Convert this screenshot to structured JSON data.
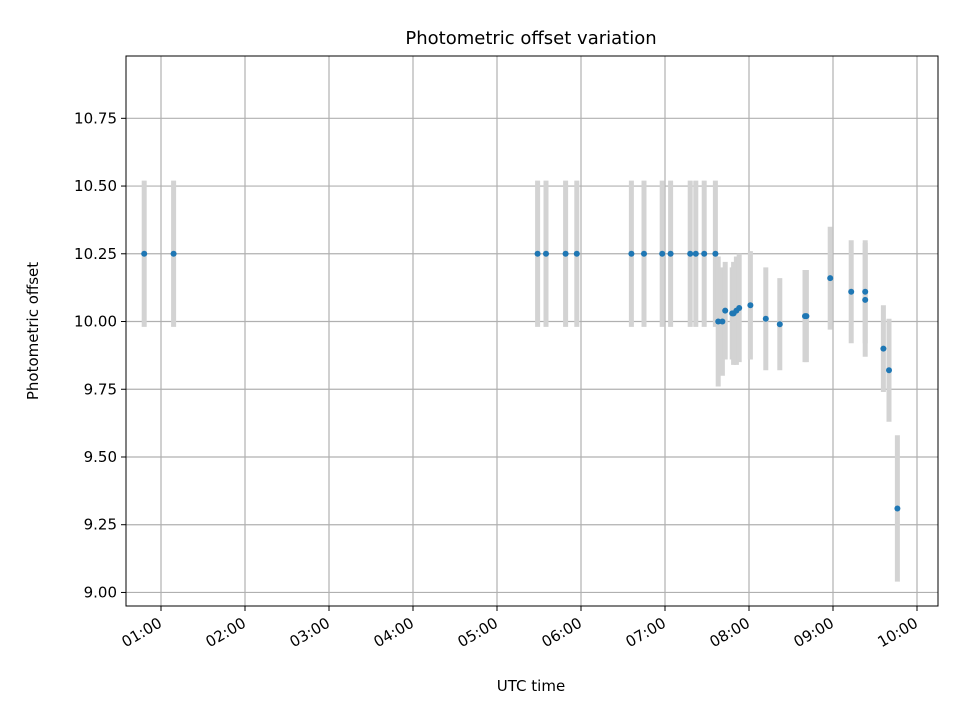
{
  "chart_data": {
    "type": "scatter",
    "title": "Photometric offset variation",
    "xlabel": "UTC time",
    "ylabel": "Photometric offset",
    "x_unit": "time of day (HH:MM, UTC)",
    "xlim": [
      "00:35",
      "10:15"
    ],
    "ylim": [
      8.95,
      10.98
    ],
    "x_ticks": [
      "01:00",
      "02:00",
      "03:00",
      "04:00",
      "05:00",
      "06:00",
      "07:00",
      "08:00",
      "09:00",
      "10:00"
    ],
    "y_ticks": [
      "9.00",
      "9.25",
      "9.50",
      "9.75",
      "10.00",
      "10.25",
      "10.50",
      "10.75"
    ],
    "grid": true,
    "colors": {
      "points": "#1f77b4",
      "errorbars": "#d3d3d3",
      "grid": "#b0b0b0"
    },
    "series": [
      {
        "x": [
          "00:48",
          "01:09",
          "05:29",
          "05:35",
          "05:49",
          "05:57",
          "06:36",
          "06:45",
          "06:58",
          "07:04",
          "07:18",
          "07:22",
          "07:28",
          "07:36",
          "07:38",
          "07:41",
          "07:43",
          "07:48",
          "07:49",
          "07:51",
          "07:53",
          "08:01",
          "08:12",
          "08:22",
          "08:40",
          "08:41",
          "08:58",
          "09:13",
          "09:23",
          "09:23",
          "09:36",
          "09:40",
          "09:46"
        ],
        "y": [
          10.25,
          10.25,
          10.25,
          10.25,
          10.25,
          10.25,
          10.25,
          10.25,
          10.25,
          10.25,
          10.25,
          10.25,
          10.25,
          10.25,
          10.0,
          10.0,
          10.04,
          10.03,
          10.03,
          10.04,
          10.05,
          10.06,
          10.01,
          9.99,
          10.02,
          10.02,
          10.16,
          10.11,
          10.11,
          10.08,
          9.9,
          9.82,
          9.31
        ],
        "yerr": [
          0.27,
          0.27,
          0.27,
          0.27,
          0.27,
          0.27,
          0.27,
          0.27,
          0.27,
          0.27,
          0.27,
          0.27,
          0.27,
          0.27,
          0.24,
          0.2,
          0.18,
          0.17,
          0.19,
          0.2,
          0.2,
          0.2,
          0.19,
          0.17,
          0.17,
          0.17,
          0.19,
          0.19,
          0.19,
          0.21,
          0.16,
          0.19,
          0.27
        ]
      }
    ]
  }
}
